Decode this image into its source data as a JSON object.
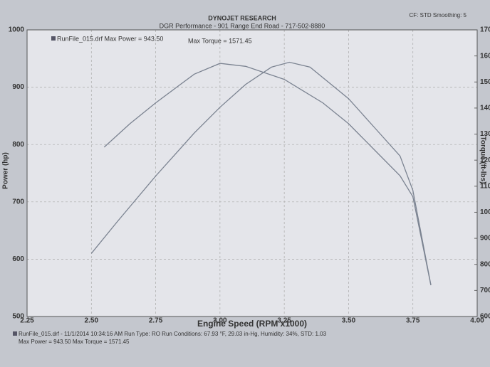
{
  "chart_data": {
    "type": "line",
    "title": "DYNOJET RESEARCH",
    "subtitle": "DGR Performance - 901 Range End Road - 717-502-8880",
    "settings_text": "CF: STD  Smoothing: 5",
    "x_label": "Engine Speed (RPM x1000)",
    "y_label": "Power (hp)",
    "y2_label": "Torque (ft-lbs)",
    "legend_entries": [
      "RunFile_015.drf Max Power = 943.50",
      "Max Torque = 1571.45"
    ],
    "footer": [
      "RunFile_015.drf - 11/1/2014 10:34:16 AM   Run Type: RO   Run Conditions: 67.93 °F, 29.03 in-Hg, Humidity: 34%, STD: 1.03",
      "Max Power = 943.50   Max Torque = 1571.45"
    ],
    "xlim": [
      2.25,
      4.0
    ],
    "xticks": [
      {
        "value": 2.25,
        "label": "2.25"
      },
      {
        "value": 2.5,
        "label": "2.50"
      },
      {
        "value": 2.75,
        "label": "2.75"
      },
      {
        "value": 3,
        "label": "3.00"
      },
      {
        "value": 3.25,
        "label": "3.25"
      },
      {
        "value": 3.5,
        "label": "3.50"
      },
      {
        "value": 3.75,
        "label": "3.75"
      },
      {
        "value": 4,
        "label": "4.00"
      }
    ],
    "ylim": [
      500,
      1000
    ],
    "yticks": [
      500,
      600,
      700,
      800,
      900,
      1000
    ],
    "y2lim": [
      600,
      1700
    ],
    "y2ticks": [
      600,
      700,
      800,
      900,
      1000,
      1100,
      1200,
      1300,
      1400,
      1500,
      1600,
      1700
    ],
    "grid": true,
    "series": [
      {
        "name": "Power",
        "color": "#7b8391",
        "x": [
          2.5,
          2.6,
          2.75,
          2.9,
          3.0,
          3.1,
          3.2,
          3.27,
          3.35,
          3.5,
          3.6,
          3.7,
          3.75,
          3.82
        ],
        "values": [
          610,
          665,
          745,
          820,
          865,
          905,
          935,
          943.5,
          935,
          880,
          830,
          780,
          720,
          555
        ]
      },
      {
        "name": "Torque",
        "color": "#7b8391",
        "axis": "y2",
        "x": [
          2.55,
          2.65,
          2.75,
          2.9,
          3.0,
          3.1,
          3.25,
          3.4,
          3.5,
          3.6,
          3.7,
          3.75,
          3.82
        ],
        "values": [
          1250,
          1340,
          1420,
          1530,
          1571.45,
          1560,
          1510,
          1420,
          1340,
          1240,
          1140,
          1060,
          720
        ]
      }
    ]
  }
}
